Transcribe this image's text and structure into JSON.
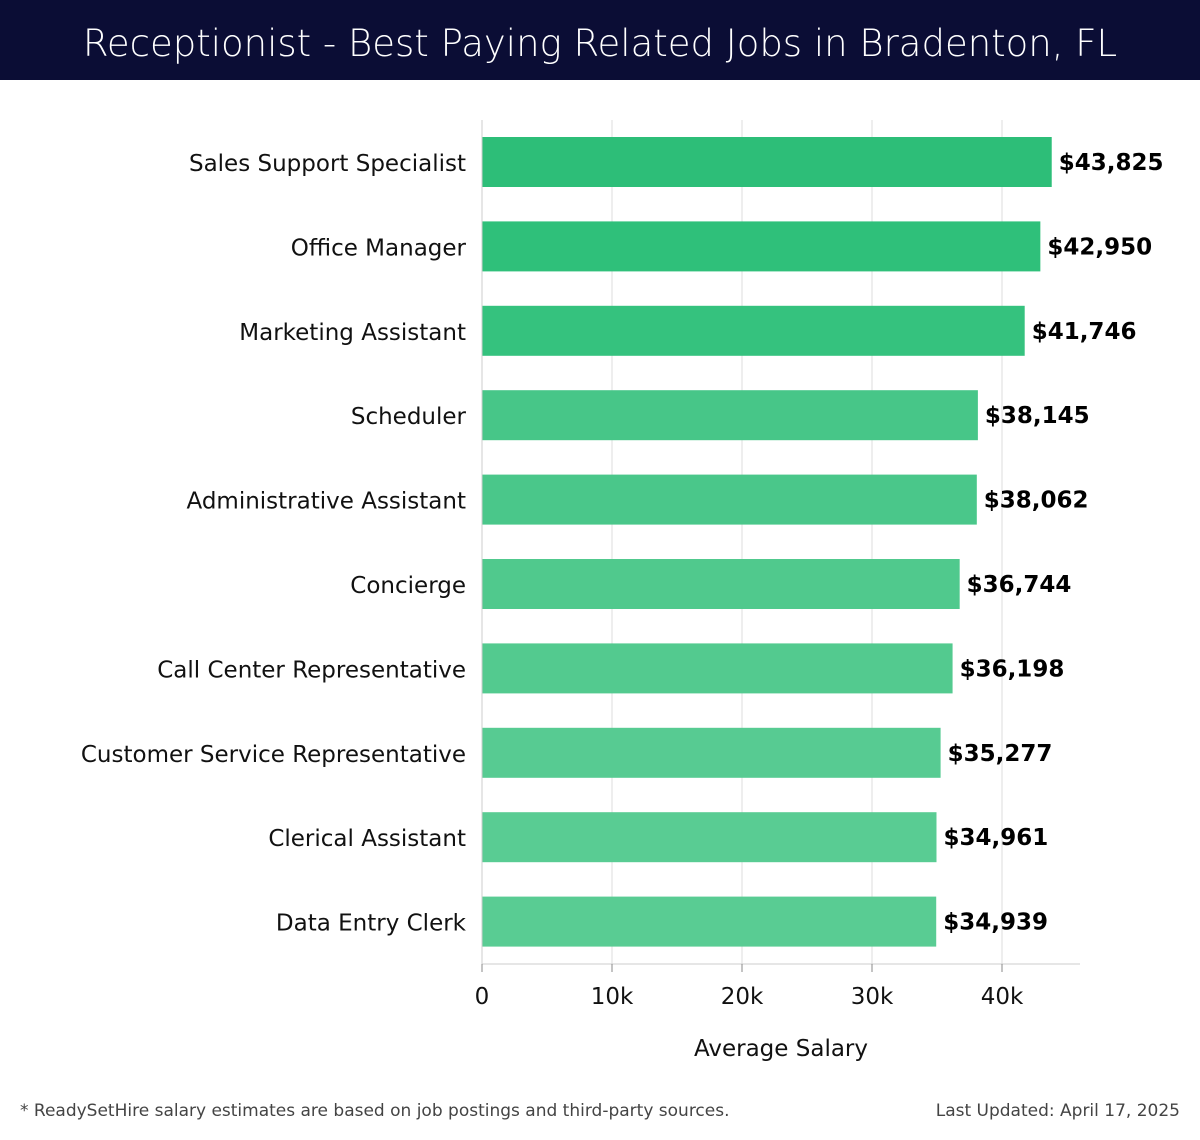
{
  "header": {
    "title": "Receptionist - Best Paying Related Jobs in Bradenton, FL"
  },
  "chart_data": {
    "type": "bar",
    "orientation": "horizontal",
    "categories": [
      "Sales Support Specialist",
      "Office Manager",
      "Marketing Assistant",
      "Scheduler",
      "Administrative Assistant",
      "Concierge",
      "Call Center Representative",
      "Customer Service Representative",
      "Clerical Assistant",
      "Data Entry Clerk"
    ],
    "values": [
      43825,
      42950,
      41746,
      38145,
      38062,
      36744,
      36198,
      35277,
      34961,
      34939
    ],
    "value_labels": [
      "$43,825",
      "$42,950",
      "$41,746",
      "$38,145",
      "$38,062",
      "$36,744",
      "$36,198",
      "$35,277",
      "$34,961",
      "$34,939"
    ],
    "bar_colors": [
      "#2dbe78",
      "#2fc07a",
      "#35c27e",
      "#47c688",
      "#4ac78a",
      "#50c98d",
      "#53ca8f",
      "#57cb92",
      "#59cc93",
      "#59cc93"
    ],
    "xlabel": "Average Salary",
    "xlim": [
      0,
      46000
    ],
    "xticks": [
      0,
      10000,
      20000,
      30000,
      40000
    ],
    "xtick_labels": [
      "0",
      "10k",
      "20k",
      "30k",
      "40k"
    ],
    "grid": true,
    "legend": "none"
  },
  "footer": {
    "note": "* ReadySetHire salary estimates are based on job postings and third-party sources.",
    "updated": "Last Updated: April 17, 2025"
  }
}
